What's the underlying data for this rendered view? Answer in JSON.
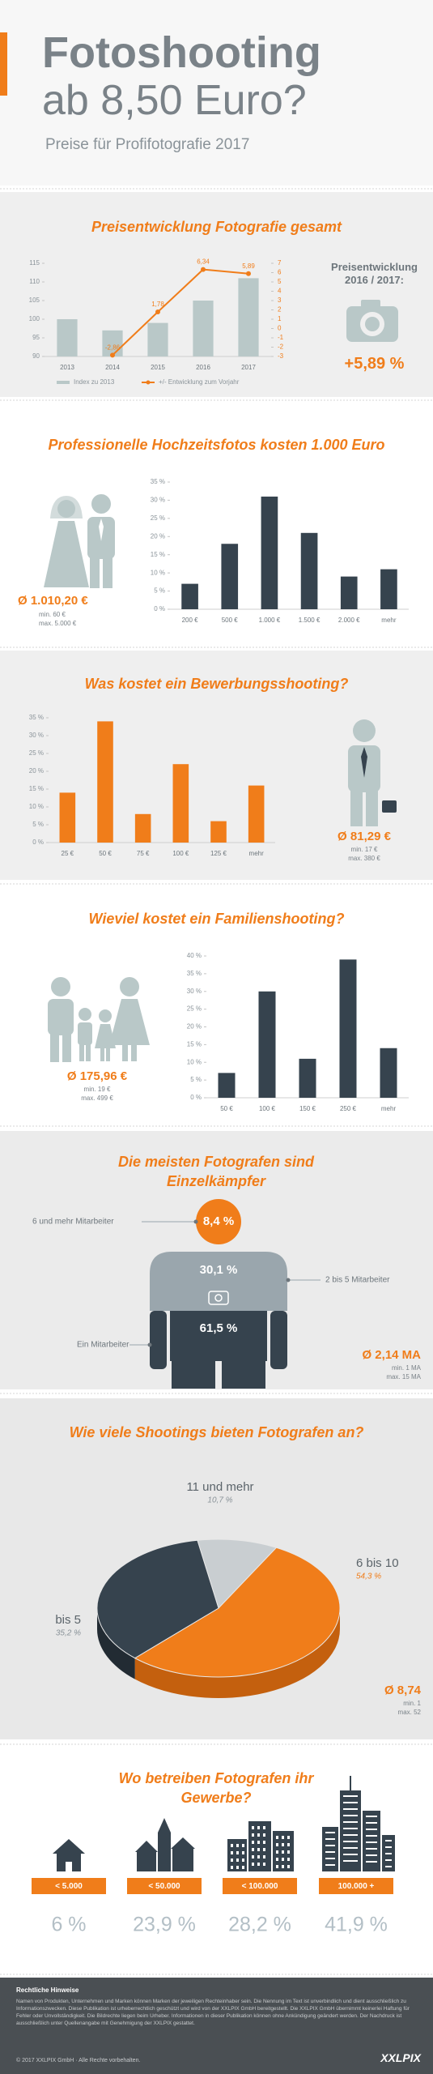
{
  "header": {
    "title_1": "Fotoshooting",
    "title_2": "ab 8,50 Euro?",
    "subtitle": "Preise für Profifotografie 2017"
  },
  "chart_data": [
    {
      "type": "combo",
      "title": "Preisentwicklung Fotografie gesamt",
      "categories": [
        "2013",
        "2014",
        "2015",
        "2016",
        "2017"
      ],
      "series": [
        {
          "name": "Index zu 2013",
          "type": "bar",
          "color": "#b9c8c8",
          "values": [
            100,
            97,
            99,
            105,
            111
          ]
        },
        {
          "name": "+/- Entwicklung zum Vorjahr",
          "type": "line",
          "axis": "y2",
          "color": "#f07d1a",
          "values": [
            null,
            -2.86,
            1.78,
            6.34,
            5.89
          ],
          "value_labels": [
            null,
            "-2,86",
            "1,78",
            "6,34",
            "5,89"
          ]
        }
      ],
      "ylim": [
        90,
        115
      ],
      "yticks": [
        90,
        95,
        100,
        105,
        110,
        115
      ],
      "y2lim": [
        -3,
        7
      ],
      "y2ticks": [
        -3,
        -2,
        -1,
        0,
        1,
        2,
        3,
        4,
        5,
        6,
        7
      ],
      "side_label": "Preisentwicklung 2016 / 2017:",
      "side_value": "+5,89 %"
    },
    {
      "type": "bar",
      "title": "Professionelle Hochzeitsfotos kosten 1.000 Euro",
      "categories": [
        "200 €",
        "500 €",
        "1.000 €",
        "1.500 €",
        "2.000 €",
        "mehr"
      ],
      "values": [
        7,
        18,
        31,
        21,
        9,
        11
      ],
      "color": "#36434e",
      "ylim": [
        0,
        35
      ],
      "yticks": [
        {
          "value": 0,
          "label": "0 %"
        },
        {
          "value": 5,
          "label": "5 %"
        },
        {
          "value": 10,
          "label": "10 %"
        },
        {
          "value": 15,
          "label": "15 %"
        },
        {
          "value": 20,
          "label": "20 %"
        },
        {
          "value": 25,
          "label": "25 %"
        },
        {
          "value": 30,
          "label": "30 %"
        },
        {
          "value": 35,
          "label": "35 %"
        }
      ],
      "average": "Ø 1.010,20 €",
      "min": "min. 60 €",
      "max": "max. 5.000 €"
    },
    {
      "type": "bar",
      "title": "Was kostet ein Bewerbungsshooting?",
      "categories": [
        "25 €",
        "50 €",
        "75 €",
        "100 €",
        "125 €",
        "mehr"
      ],
      "values": [
        14,
        34,
        8,
        22,
        6,
        16
      ],
      "color": "#f07d1a",
      "ylim": [
        0,
        35
      ],
      "yticks": [
        {
          "value": 0,
          "label": "0 %"
        },
        {
          "value": 5,
          "label": "5 %"
        },
        {
          "value": 10,
          "label": "10 %"
        },
        {
          "value": 15,
          "label": "15 %"
        },
        {
          "value": 20,
          "label": "20 %"
        },
        {
          "value": 25,
          "label": "25 %"
        },
        {
          "value": 30,
          "label": "30 %"
        },
        {
          "value": 35,
          "label": "35 %"
        }
      ],
      "average": "Ø 81,29 €",
      "min": "min. 17 €",
      "max": "max. 380 €"
    },
    {
      "type": "bar",
      "title": "Wieviel kostet ein Familienshooting?",
      "categories": [
        "50 €",
        "100 €",
        "150 €",
        "250 €",
        "mehr"
      ],
      "values": [
        7,
        30,
        11,
        39,
        14
      ],
      "color": "#36434e",
      "ylim": [
        0,
        40
      ],
      "yticks": [
        {
          "value": 0,
          "label": "0 %"
        },
        {
          "value": 5,
          "label": "5 %"
        },
        {
          "value": 10,
          "label": "10 %"
        },
        {
          "value": 15,
          "label": "15 %"
        },
        {
          "value": 20,
          "label": "20 %"
        },
        {
          "value": 25,
          "label": "25 %"
        },
        {
          "value": 30,
          "label": "30 %"
        },
        {
          "value": 35,
          "label": "35 %"
        },
        {
          "value": 40,
          "label": "40 %"
        }
      ],
      "average": "Ø 175,96 €",
      "min": "min. 19 €",
      "max": "max. 499 €"
    },
    {
      "type": "figure",
      "title": "Die meisten Fotografen sind Einzelkämpfer",
      "categories": [
        "6 und mehr Mitarbeiter",
        "2 bis 5 Mitarbeiter",
        "Ein Mitarbeiter"
      ],
      "values": [
        8.4,
        30.1,
        61.5
      ],
      "value_labels": [
        "8,4 %",
        "30,1 %",
        "61,5 %"
      ],
      "colors": [
        "#f07d1a",
        "#9aa6ad",
        "#36434e"
      ],
      "average": "Ø 2,14 MA",
      "min": "min. 1 MA",
      "max": "max. 15 MA"
    },
    {
      "type": "pie",
      "title": "Wie viele Shootings bieten Fotografen an?",
      "categories": [
        "11 und mehr",
        "6 bis 10",
        "bis 5"
      ],
      "values": [
        10.7,
        54.3,
        35.2
      ],
      "value_labels": [
        "10,7 %",
        "54,3 %",
        "35,2 %"
      ],
      "colors": [
        "#c9ced1",
        "#f07d1a",
        "#36434e"
      ],
      "average": "Ø 8,74",
      "min": "min. 1",
      "max": "max. 52"
    },
    {
      "type": "pictogram",
      "title": "Wo betreiben Fotografen ihr Gewerbe?",
      "categories": [
        "< 5.000",
        "< 50.000",
        "< 100.000",
        "100.000 +"
      ],
      "values": [
        6,
        23.9,
        28.2,
        41.9
      ],
      "value_labels": [
        "6 %",
        "23,9 %",
        "28,2 %",
        "41,9 %"
      ],
      "color": "#36434e",
      "label_color": "#f07d1a"
    }
  ],
  "footer": {
    "heading": "Rechtliche Hinweise",
    "text": "Namen von Produkten, Unternehmen und Marken können Marken der jeweiligen Rechteinhaber sein. Die Nennung im Text ist unverbindlich und dient ausschließlich zu Informationszwecken. Diese Publikation ist urheberrechtlich geschützt und wird von der XXLPIX GmbH bereitgestellt. Die XXLPIX GmbH übernimmt keinerlei Haftung für Fehler oder Unvollständigkeit. Die Bildrechte liegen beim Urheber. Informationen in dieser Publikation können ohne Ankündigung geändert werden. Der Nachdruck ist ausschließlich unter Quellenangabe mit Genehmigung der XXLPIX gestattet.",
    "copyright": "© 2017 XXLPIX GmbH · Alle Rechte vorbehalten.",
    "logo": "XXLPIX"
  }
}
